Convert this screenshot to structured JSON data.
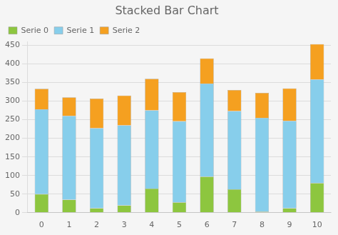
{
  "chart_data": {
    "type": "bar",
    "title": "Stacked Bar Chart",
    "categories": [
      0,
      1,
      2,
      3,
      4,
      5,
      6,
      7,
      8,
      9,
      10
    ],
    "series": [
      {
        "name": "Serie 0",
        "color": "#8dc63f",
        "values": [
          50,
          35,
          12,
          20,
          65,
          28,
          97,
          63,
          3,
          12,
          80
        ]
      },
      {
        "name": "Serie 1",
        "color": "#87ceeb",
        "values": [
          228,
          225,
          215,
          215,
          210,
          218,
          250,
          210,
          252,
          235,
          278
        ]
      },
      {
        "name": "Serie 2",
        "color": "#f5a020",
        "values": [
          55,
          50,
          80,
          80,
          85,
          78,
          68,
          57,
          67,
          87,
          95
        ]
      }
    ],
    "stacked": true,
    "ylim": [
      0,
      460
    ],
    "yticks": [
      0,
      50,
      100,
      150,
      200,
      250,
      300,
      350,
      400,
      450
    ],
    "grid": true,
    "legend": "upper-left"
  }
}
